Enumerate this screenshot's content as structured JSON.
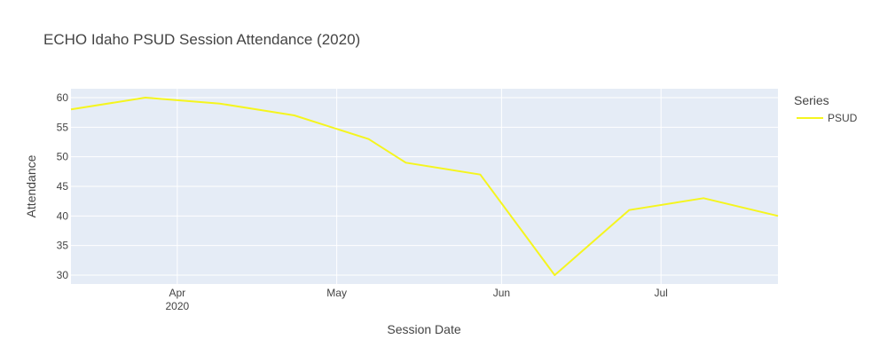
{
  "chart_data": {
    "type": "line",
    "title": "ECHO Idaho PSUD Session Attendance (2020)",
    "xlabel": "Session Date",
    "ylabel": "Attendance",
    "legend_title": "Series",
    "legend_position": "top-right",
    "grid": true,
    "xlim": [
      "2020-03-12",
      "2020-07-23"
    ],
    "ylim": [
      28.5,
      61.5
    ],
    "x_ticks": [
      {
        "date": "2020-04-01",
        "label": "Apr",
        "sublabel": "2020"
      },
      {
        "date": "2020-05-01",
        "label": "May",
        "sublabel": ""
      },
      {
        "date": "2020-06-01",
        "label": "Jun",
        "sublabel": ""
      },
      {
        "date": "2020-07-01",
        "label": "Jul",
        "sublabel": ""
      }
    ],
    "y_ticks": [
      30,
      35,
      40,
      45,
      50,
      55,
      60
    ],
    "series": [
      {
        "name": "PSUD",
        "color": "#f5f51e",
        "points": [
          {
            "x": "2020-03-12",
            "y": 58
          },
          {
            "x": "2020-03-26",
            "y": 60
          },
          {
            "x": "2020-04-09",
            "y": 59
          },
          {
            "x": "2020-04-23",
            "y": 57
          },
          {
            "x": "2020-05-07",
            "y": 53
          },
          {
            "x": "2020-05-14",
            "y": 49
          },
          {
            "x": "2020-05-28",
            "y": 47
          },
          {
            "x": "2020-06-11",
            "y": 30
          },
          {
            "x": "2020-06-25",
            "y": 41
          },
          {
            "x": "2020-07-09",
            "y": 43
          },
          {
            "x": "2020-07-23",
            "y": 40
          }
        ]
      }
    ]
  }
}
